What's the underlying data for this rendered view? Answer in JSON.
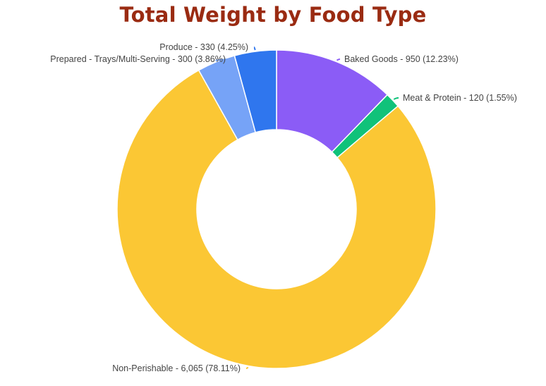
{
  "chart_data": {
    "type": "pie",
    "variant": "donut",
    "title": "Total Weight by Food Type",
    "title_color": "#9a2b12",
    "start_angle_deg": 0,
    "direction": "clockwise",
    "slices": [
      {
        "name": "Baked Goods",
        "value": 950,
        "percent": 12.23,
        "label": "Baked Goods - 950 (12.23%)",
        "color": "#8b5cf6"
      },
      {
        "name": "Meat & Protein",
        "value": 120,
        "percent": 1.55,
        "label": "Meat & Protein - 120 (1.55%)",
        "color": "#10c27a"
      },
      {
        "name": "Non-Perishable",
        "value": 6065,
        "percent": 78.11,
        "label": "Non-Perishable - 6,065 (78.11%)",
        "color": "#fbc734"
      },
      {
        "name": "Prepared - Trays/Multi-Serving",
        "value": 300,
        "percent": 3.86,
        "label": "Prepared - Trays/Multi-Serving - 300 (3.86%)",
        "color": "#76a3f7"
      },
      {
        "name": "Produce",
        "value": 330,
        "percent": 4.25,
        "label": "Produce - 330 (4.25%)",
        "color": "#2f76ee"
      }
    ]
  }
}
